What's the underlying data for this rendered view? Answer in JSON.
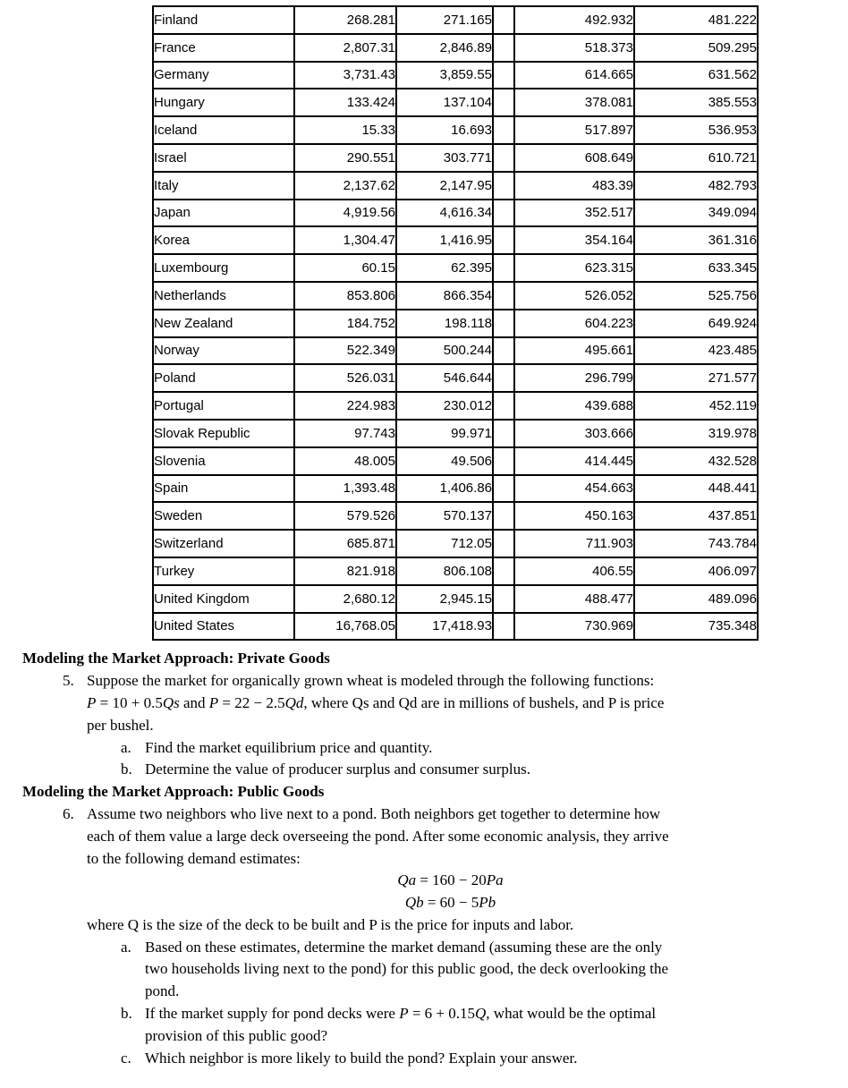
{
  "table": {
    "rows": [
      {
        "country": "Finland",
        "v1": "268.281",
        "v2": "271.165",
        "v3": "492.932",
        "v4": "481.222"
      },
      {
        "country": "France",
        "v1": "2,807.31",
        "v2": "2,846.89",
        "v3": "518.373",
        "v4": "509.295"
      },
      {
        "country": "Germany",
        "v1": "3,731.43",
        "v2": "3,859.55",
        "v3": "614.665",
        "v4": "631.562"
      },
      {
        "country": "Hungary",
        "v1": "133.424",
        "v2": "137.104",
        "v3": "378.081",
        "v4": "385.553"
      },
      {
        "country": "Iceland",
        "v1": "15.33",
        "v2": "16.693",
        "v3": "517.897",
        "v4": "536.953"
      },
      {
        "country": "Israel",
        "v1": "290.551",
        "v2": "303.771",
        "v3": "608.649",
        "v4": "610.721"
      },
      {
        "country": "Italy",
        "v1": "2,137.62",
        "v2": "2,147.95",
        "v3": "483.39",
        "v4": "482.793"
      },
      {
        "country": "Japan",
        "v1": "4,919.56",
        "v2": "4,616.34",
        "v3": "352.517",
        "v4": "349.094"
      },
      {
        "country": "Korea",
        "v1": "1,304.47",
        "v2": "1,416.95",
        "v3": "354.164",
        "v4": "361.316"
      },
      {
        "country": "Luxembourg",
        "v1": "60.15",
        "v2": "62.395",
        "v3": "623.315",
        "v4": "633.345"
      },
      {
        "country": "Netherlands",
        "v1": "853.806",
        "v2": "866.354",
        "v3": "526.052",
        "v4": "525.756"
      },
      {
        "country": "New Zealand",
        "v1": "184.752",
        "v2": "198.118",
        "v3": "604.223",
        "v4": "649.924"
      },
      {
        "country": "Norway",
        "v1": "522.349",
        "v2": "500.244",
        "v3": "495.661",
        "v4": "423.485"
      },
      {
        "country": "Poland",
        "v1": "526.031",
        "v2": "546.644",
        "v3": "296.799",
        "v4": "271.577"
      },
      {
        "country": "Portugal",
        "v1": "224.983",
        "v2": "230.012",
        "v3": "439.688",
        "v4": "452.119"
      },
      {
        "country": "Slovak Republic",
        "v1": "97.743",
        "v2": "99.971",
        "v3": "303.666",
        "v4": "319.978"
      },
      {
        "country": "Slovenia",
        "v1": "48.005",
        "v2": "49.506",
        "v3": "414.445",
        "v4": "432.528"
      },
      {
        "country": "Spain",
        "v1": "1,393.48",
        "v2": "1,406.86",
        "v3": "454.663",
        "v4": "448.441"
      },
      {
        "country": "Sweden",
        "v1": "579.526",
        "v2": "570.137",
        "v3": "450.163",
        "v4": "437.851"
      },
      {
        "country": "Switzerland",
        "v1": "685.871",
        "v2": "712.05",
        "v3": "711.903",
        "v4": "743.784"
      },
      {
        "country": "Turkey",
        "v1": "821.918",
        "v2": "806.108",
        "v3": "406.55",
        "v4": "406.097"
      },
      {
        "country": "United Kingdom",
        "v1": "2,680.12",
        "v2": "2,945.15",
        "v3": "488.477",
        "v4": "489.096"
      },
      {
        "country": "United States",
        "v1": "16,768.05",
        "v2": "17,418.93",
        "v3": "730.969",
        "v4": "735.348"
      }
    ]
  },
  "doc": {
    "private": {
      "heading": "Modeling the Market Approach: Private Goods",
      "number": "5.",
      "body": [
        "Suppose the market for organically grown wheat is modeled through the following functions:",
        [
          {
            "t": "P",
            "i": true
          },
          {
            "t": " = 10 + 0.5",
            "i": false
          },
          {
            "t": "Qs",
            "i": true
          },
          {
            "t": " and ",
            "i": false
          },
          {
            "t": "P",
            "i": true
          },
          {
            "t": " = 22 − 2.5",
            "i": false
          },
          {
            "t": "Qd",
            "i": true
          },
          {
            "t": ", where Qs and Qd are in millions of bushels, and P is price",
            "i": false
          }
        ],
        "per bushel."
      ],
      "subitems": [
        {
          "label": "a.",
          "lines": [
            "Find the market equilibrium price and quantity."
          ]
        },
        {
          "label": "b.",
          "lines": [
            "Determine the value of producer surplus and consumer surplus."
          ]
        }
      ]
    },
    "public": {
      "heading": "Modeling the Market Approach: Public Goods",
      "number": "6.",
      "body": [
        "Assume two neighbors who live next to a pond. Both neighbors get together to determine how",
        "each of them value a large deck overseeing the pond. After some economic analysis, they arrive",
        "to the following demand estimates:"
      ],
      "equations": [
        [
          {
            "t": "Qa",
            "i": true
          },
          {
            "t": " = 160 − 20",
            "i": false
          },
          {
            "t": "Pa",
            "i": true
          }
        ],
        [
          {
            "t": "Qb",
            "i": true
          },
          {
            "t": " = 60 − 5",
            "i": false
          },
          {
            "t": "Pb",
            "i": true
          }
        ]
      ],
      "after": [
        "where Q is the size of the deck to be built and P is the price for inputs and labor."
      ],
      "subitems": [
        {
          "label": "a.",
          "lines": [
            "Based on these estimates, determine the market demand (assuming these are the only",
            "two households living next to the pond) for this public good, the deck overlooking the",
            "pond."
          ]
        },
        {
          "label": "b.",
          "lines": [
            [
              {
                "t": "If the market supply for pond decks were ",
                "i": false
              },
              {
                "t": "P",
                "i": true
              },
              {
                "t": " = 6 + 0.15",
                "i": false
              },
              {
                "t": "Q",
                "i": true
              },
              {
                "t": ", what would be the optimal",
                "i": false
              }
            ],
            "provision of this public good?"
          ]
        },
        {
          "label": "c.",
          "lines": [
            "Which neighbor is more likely to build the pond? Explain your answer."
          ]
        }
      ]
    }
  }
}
